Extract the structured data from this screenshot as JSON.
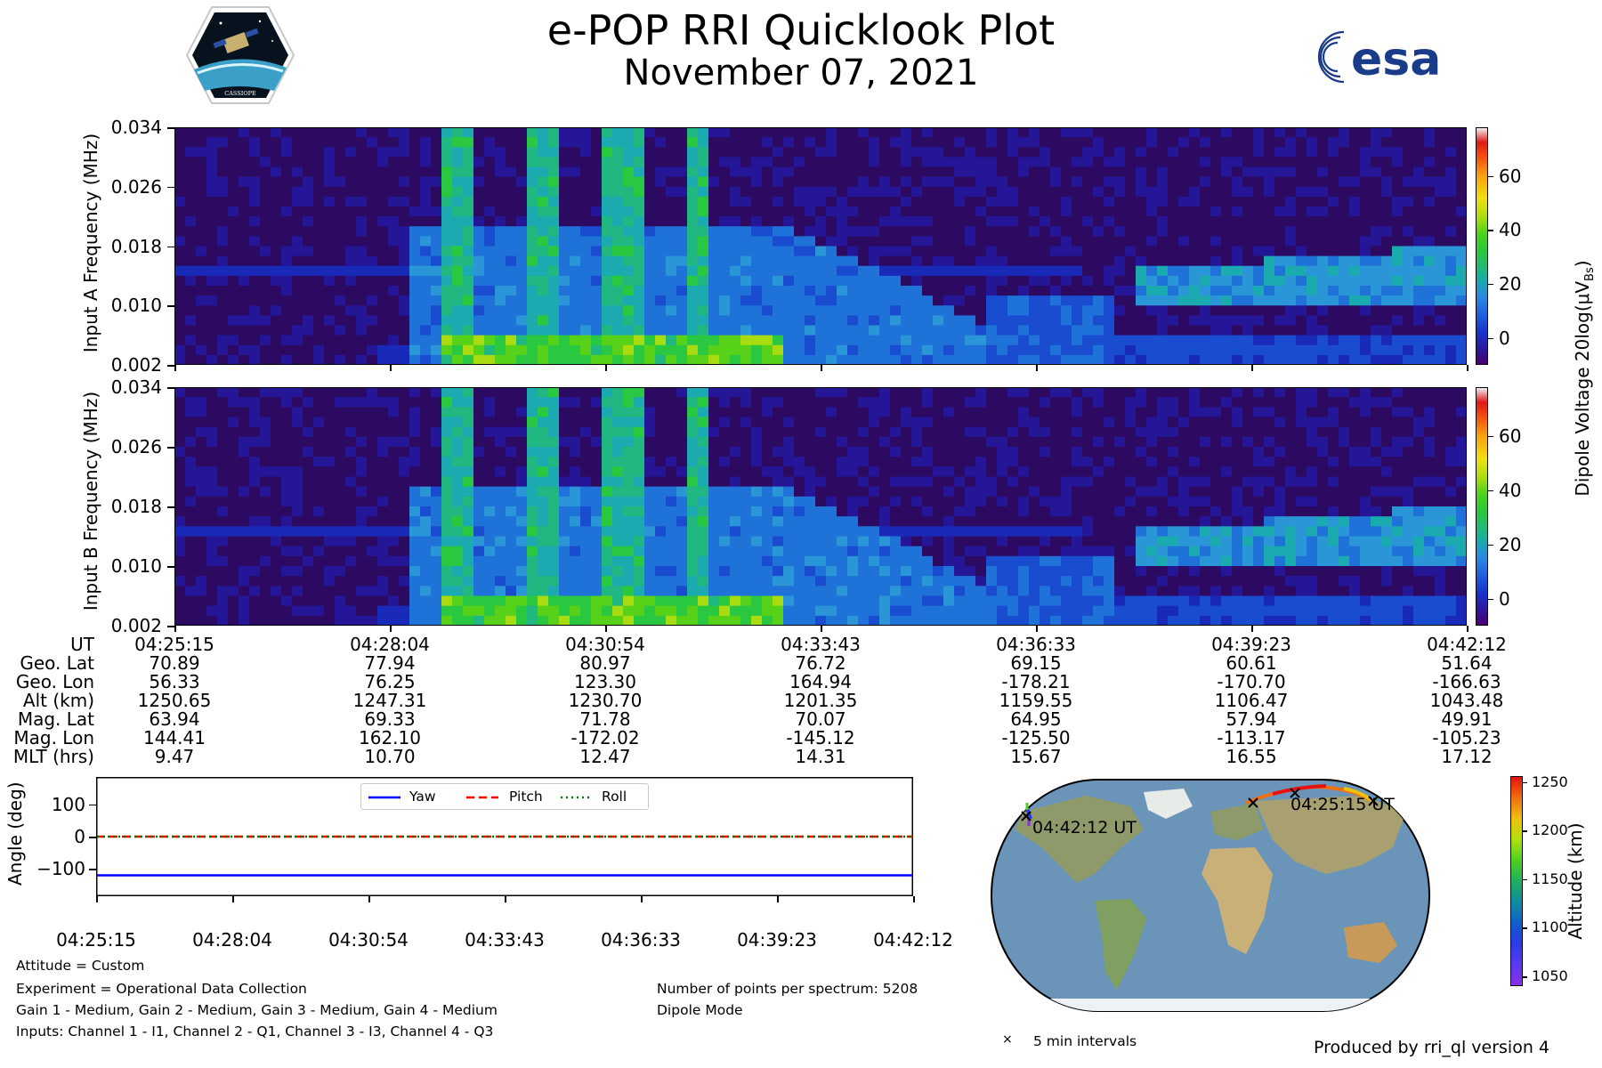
{
  "title": "e-POP RRI Quicklook Plot",
  "subtitle": "November 07, 2021",
  "logos": {
    "left": "CASSIOPE",
    "right": "esa"
  },
  "colors": {
    "yaw": "#0000ff",
    "pitch": "#ff0000",
    "roll": "#008000",
    "spec_bg": "#2c0a62"
  },
  "chart_data": [
    {
      "type": "heatmap",
      "ylabel": "Input A Frequency (MHz)",
      "y_ticks": [
        "0.034",
        "0.026",
        "0.018",
        "0.010",
        "0.002"
      ],
      "ylim": [
        0.002,
        0.034
      ],
      "colorbar_ticks": [
        "60",
        "40",
        "20",
        "0"
      ],
      "colorbar_range": [
        -10,
        78
      ]
    },
    {
      "type": "heatmap",
      "ylabel": "Input B Frequency (MHz)",
      "y_ticks": [
        "0.034",
        "0.026",
        "0.018",
        "0.010",
        "0.002"
      ],
      "ylim": [
        0.002,
        0.034
      ],
      "colorbar_ticks": [
        "60",
        "40",
        "20",
        "0"
      ],
      "colorbar_range": [
        -10,
        78
      ]
    },
    {
      "type": "line",
      "ylabel": "Angle (deg)",
      "y_ticks": [
        "100",
        "0",
        "−100"
      ],
      "ylim": [
        -185,
        185
      ],
      "x_ticks": [
        "04:25:15",
        "04:28:04",
        "04:30:54",
        "04:33:43",
        "04:36:33",
        "04:39:23",
        "04:42:12"
      ],
      "series": [
        {
          "name": "Yaw",
          "value": -120
        },
        {
          "name": "Pitch",
          "value": 0
        },
        {
          "name": "Roll",
          "value": 0
        }
      ]
    },
    {
      "type": "map",
      "start_label": "04:25:15 UT",
      "end_label": "04:42:12 UT",
      "legend": "5 min intervals",
      "colorbar_label": "Altitude (km)",
      "colorbar_ticks": [
        "1250",
        "1200",
        "1150",
        "1100",
        "1050"
      ],
      "colorbar_range": [
        1040,
        1256
      ]
    }
  ],
  "colorbar_label": "Dipole Voltage 20log(μV",
  "colorbar_label_sub": "Bs",
  "colorbar_label_end": ")",
  "table": {
    "labels": [
      "UT",
      "Geo. Lat",
      "Geo. Lon",
      "Alt (km)",
      "Mag. Lat",
      "Mag. Lon",
      "MLT (hrs)"
    ],
    "columns": [
      [
        "04:25:15",
        "70.89",
        "56.33",
        "1250.65",
        "63.94",
        "144.41",
        "9.47"
      ],
      [
        "04:28:04",
        "77.94",
        "76.25",
        "1247.31",
        "69.33",
        "162.10",
        "10.70"
      ],
      [
        "04:30:54",
        "80.97",
        "123.30",
        "1230.70",
        "71.78",
        "-172.02",
        "12.47"
      ],
      [
        "04:33:43",
        "76.72",
        "164.94",
        "1201.35",
        "70.07",
        "-145.12",
        "14.31"
      ],
      [
        "04:36:33",
        "69.15",
        "-178.21",
        "1159.55",
        "64.95",
        "-125.50",
        "15.67"
      ],
      [
        "04:39:23",
        "60.61",
        "-170.70",
        "1106.47",
        "57.94",
        "-113.17",
        "16.55"
      ],
      [
        "04:42:12",
        "51.64",
        "-166.63",
        "1043.48",
        "49.91",
        "-105.23",
        "17.12"
      ]
    ]
  },
  "info": {
    "attitude": "Attitude = Custom",
    "experiment": "Experiment = Operational Data Collection",
    "gains": "Gain 1 - Medium, Gain 2 - Medium, Gain 3 - Medium, Gain 4 - Medium",
    "inputs": "Inputs: Channel 1 - I1, Channel 2 - Q1, Channel 3 - I3, Channel 4 - Q3",
    "points": "Number of points per spectrum: 5208",
    "mode": "Dipole Mode",
    "produced": "Produced by rri_ql version 4"
  }
}
